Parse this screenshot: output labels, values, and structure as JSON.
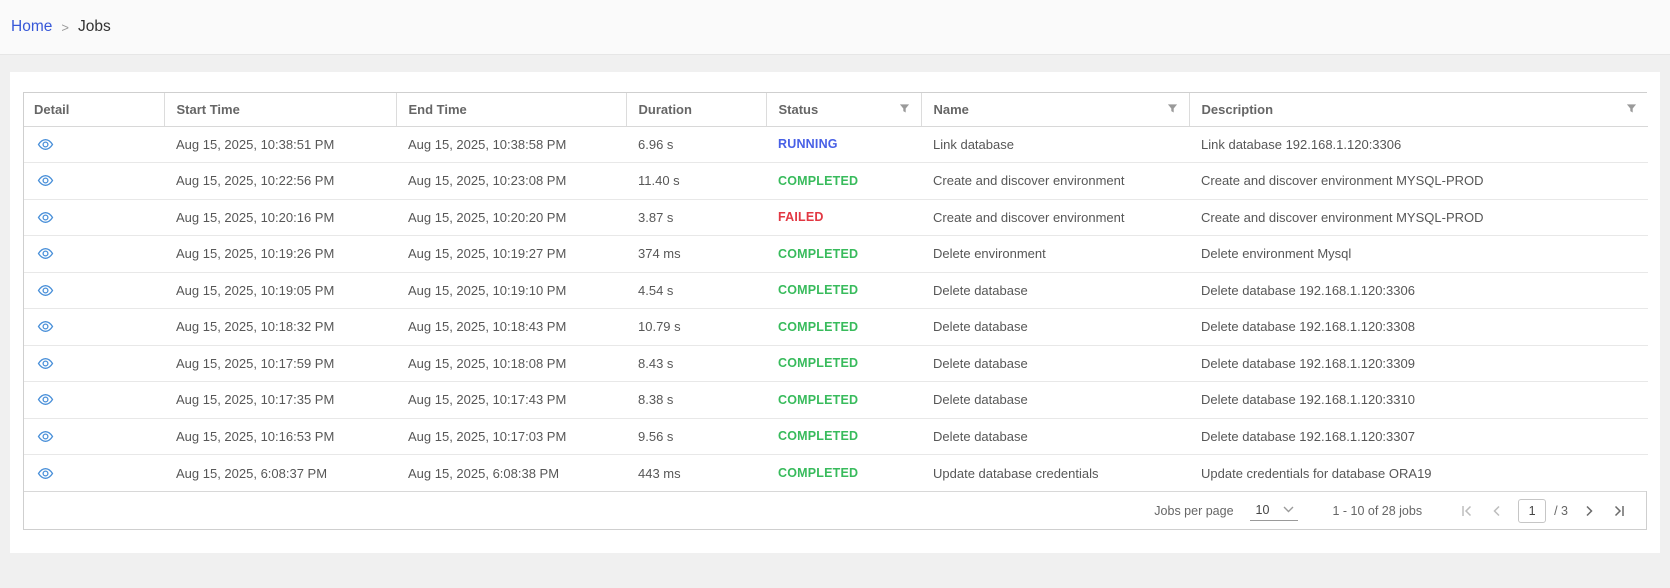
{
  "breadcrumb": {
    "home": "Home",
    "separator": ">",
    "current": "Jobs"
  },
  "table": {
    "columns": [
      {
        "label": "Detail",
        "filterable": false
      },
      {
        "label": "Start Time",
        "filterable": false
      },
      {
        "label": "End Time",
        "filterable": false
      },
      {
        "label": "Duration",
        "filterable": false
      },
      {
        "label": "Status",
        "filterable": true
      },
      {
        "label": "Name",
        "filterable": true
      },
      {
        "label": "Description",
        "filterable": true
      }
    ],
    "rows": [
      {
        "start": "Aug 15, 2025, 10:38:51 PM",
        "end": "Aug 15, 2025, 10:38:58 PM",
        "duration": "6.96 s",
        "status": "RUNNING",
        "name": "Link database",
        "description": "Link database 192.168.1.120:3306"
      },
      {
        "start": "Aug 15, 2025, 10:22:56 PM",
        "end": "Aug 15, 2025, 10:23:08 PM",
        "duration": "11.40 s",
        "status": "COMPLETED",
        "name": "Create and discover environment",
        "description": "Create and discover environment MYSQL-PROD"
      },
      {
        "start": "Aug 15, 2025, 10:20:16 PM",
        "end": "Aug 15, 2025, 10:20:20 PM",
        "duration": "3.87 s",
        "status": "FAILED",
        "name": "Create and discover environment",
        "description": "Create and discover environment MYSQL-PROD"
      },
      {
        "start": "Aug 15, 2025, 10:19:26 PM",
        "end": "Aug 15, 2025, 10:19:27 PM",
        "duration": "374 ms",
        "status": "COMPLETED",
        "name": "Delete environment",
        "description": "Delete environment Mysql"
      },
      {
        "start": "Aug 15, 2025, 10:19:05 PM",
        "end": "Aug 15, 2025, 10:19:10 PM",
        "duration": "4.54 s",
        "status": "COMPLETED",
        "name": "Delete database",
        "description": "Delete database 192.168.1.120:3306"
      },
      {
        "start": "Aug 15, 2025, 10:18:32 PM",
        "end": "Aug 15, 2025, 10:18:43 PM",
        "duration": "10.79 s",
        "status": "COMPLETED",
        "name": "Delete database",
        "description": "Delete database 192.168.1.120:3308"
      },
      {
        "start": "Aug 15, 2025, 10:17:59 PM",
        "end": "Aug 15, 2025, 10:18:08 PM",
        "duration": "8.43 s",
        "status": "COMPLETED",
        "name": "Delete database",
        "description": "Delete database 192.168.1.120:3309"
      },
      {
        "start": "Aug 15, 2025, 10:17:35 PM",
        "end": "Aug 15, 2025, 10:17:43 PM",
        "duration": "8.38 s",
        "status": "COMPLETED",
        "name": "Delete database",
        "description": "Delete database 192.168.1.120:3310"
      },
      {
        "start": "Aug 15, 2025, 10:16:53 PM",
        "end": "Aug 15, 2025, 10:17:03 PM",
        "duration": "9.56 s",
        "status": "COMPLETED",
        "name": "Delete database",
        "description": "Delete database 192.168.1.120:3307"
      },
      {
        "start": "Aug 15, 2025, 6:08:37 PM",
        "end": "Aug 15, 2025, 6:08:38 PM",
        "duration": "443 ms",
        "status": "COMPLETED",
        "name": "Update database credentials",
        "description": "Update credentials for database ORA19"
      }
    ]
  },
  "status_colors": {
    "RUNNING": "#4860e6",
    "COMPLETED": "#38bb5c",
    "FAILED": "#e23843"
  },
  "accent_colors": {
    "link_blue": "#3758d8",
    "eye_icon_blue": "#4a90d9"
  },
  "pagination": {
    "per_page_label": "Jobs per page",
    "per_page_value": "10",
    "range_text": "1 - 10 of 28 jobs",
    "current_page": "1",
    "total_pages_text": "/ 3"
  }
}
